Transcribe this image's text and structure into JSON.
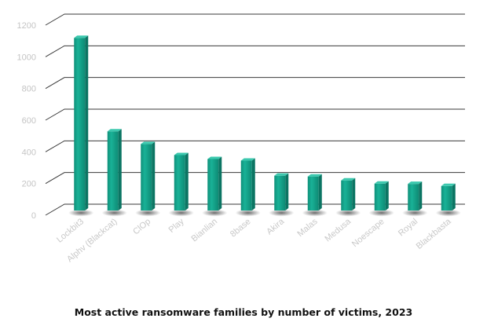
{
  "chart_data": {
    "type": "bar",
    "title": "Most active ransomware families by number of victims, 2023",
    "categories": [
      "Lockbit3",
      "Alphv (Blackcat)",
      "ClOp",
      "Play",
      "Bianlian",
      "8base",
      "Akira",
      "Malas",
      "Medusa",
      "Noescape",
      "Royal",
      "Blackbasta"
    ],
    "values": [
      1060,
      470,
      390,
      320,
      295,
      285,
      190,
      185,
      160,
      140,
      138,
      125
    ],
    "yticks": [
      0,
      200,
      400,
      600,
      800,
      1000,
      1200
    ],
    "ylim": [
      0,
      1200
    ],
    "grid": true,
    "style": "3d",
    "colors": {
      "bar": "#12a38a",
      "bar_top": "#3cc8ae",
      "bar_side": "#0b7563",
      "gridline": "#3a3a3a",
      "tick_text": "#c4c4c4",
      "title": "#111111"
    }
  }
}
